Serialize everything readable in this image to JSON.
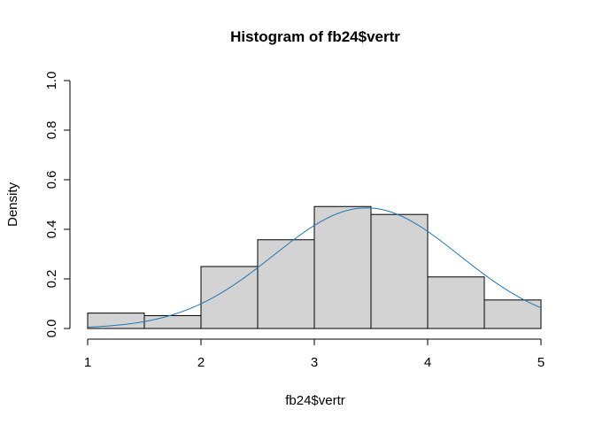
{
  "chart_data": {
    "type": "bar",
    "title": "Histogram of fb24$vertr",
    "xlabel": "fb24$vertr",
    "ylabel": "Density",
    "xlim": [
      1,
      5
    ],
    "ylim": [
      0,
      1
    ],
    "x_ticks": [
      "1",
      "2",
      "3",
      "4",
      "5"
    ],
    "y_ticks": [
      "0.0",
      "0.2",
      "0.4",
      "0.6",
      "0.8",
      "1.0"
    ],
    "bins": [
      {
        "from": 1.0,
        "to": 1.5,
        "density": 0.062
      },
      {
        "from": 1.5,
        "to": 2.0,
        "density": 0.052
      },
      {
        "from": 2.0,
        "to": 2.5,
        "density": 0.25
      },
      {
        "from": 2.5,
        "to": 3.0,
        "density": 0.358
      },
      {
        "from": 3.0,
        "to": 3.5,
        "density": 0.492
      },
      {
        "from": 3.5,
        "to": 4.0,
        "density": 0.46
      },
      {
        "from": 4.0,
        "to": 4.5,
        "density": 0.208
      },
      {
        "from": 4.5,
        "to": 5.0,
        "density": 0.115
      }
    ],
    "density_curve": {
      "distribution": "normal",
      "mean": 3.46,
      "sd": 0.82,
      "color": "#1f77b4"
    },
    "bar_fill": "#d3d3d3",
    "bar_stroke": "#000000",
    "grid": false,
    "legend": "none"
  }
}
